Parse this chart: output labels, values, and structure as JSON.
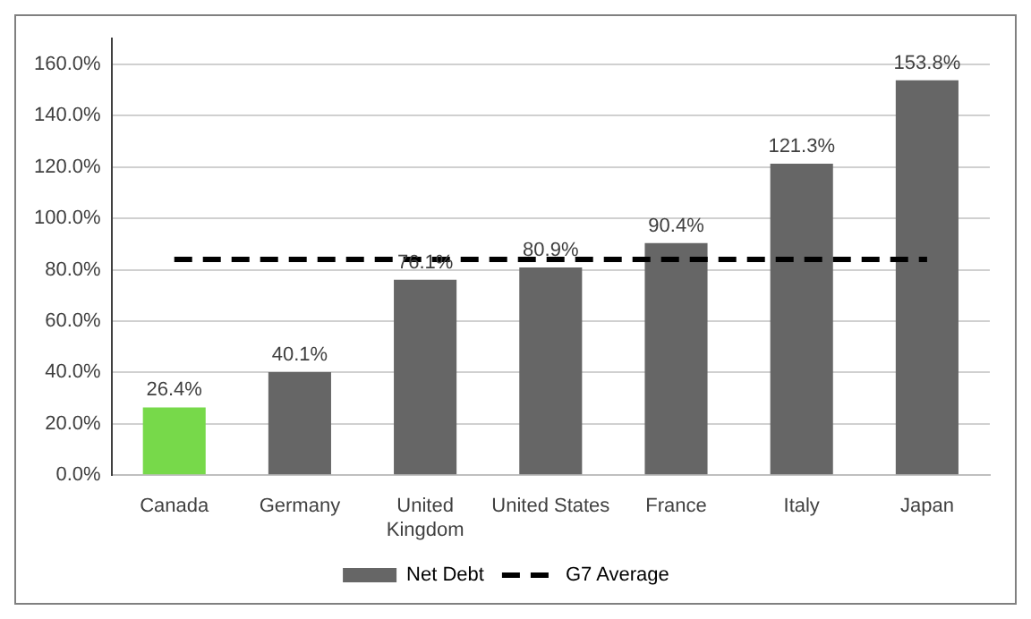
{
  "chart_data": {
    "type": "bar",
    "categories": [
      "Canada",
      "Germany",
      "United Kingdom",
      "United States",
      "France",
      "Italy",
      "Japan"
    ],
    "series": [
      {
        "name": "Net Debt",
        "color": "#666666",
        "colors": [
          "#77d94a",
          "#666666",
          "#666666",
          "#666666",
          "#666666",
          "#666666",
          "#666666"
        ],
        "values": [
          26.4,
          40.1,
          76.1,
          80.9,
          90.4,
          121.3,
          153.8
        ],
        "value_labels": [
          "26.4%",
          "40.1%",
          "76.1%",
          "80.9%",
          "90.4%",
          "121.3%",
          "153.8%"
        ]
      },
      {
        "name": "G7 Average",
        "type": "line",
        "color": "#000000",
        "line_style": "dashed",
        "marker": "none",
        "values": [
          84.0,
          84.0,
          84.0,
          84.0,
          84.0,
          84.0,
          84.0
        ]
      }
    ],
    "ylim": [
      0,
      170
    ],
    "yticks": [
      {
        "value": 0,
        "label": "0.0%"
      },
      {
        "value": 20,
        "label": "20.0%"
      },
      {
        "value": 40,
        "label": "40.0%"
      },
      {
        "value": 60,
        "label": "60.0%"
      },
      {
        "value": 80,
        "label": "80.0%"
      },
      {
        "value": 100,
        "label": "100.0%"
      },
      {
        "value": 120,
        "label": "120.0%"
      },
      {
        "value": 140,
        "label": "140.0%"
      },
      {
        "value": 160,
        "label": "160.0%"
      }
    ],
    "grid": "y",
    "legend": "bottom"
  }
}
